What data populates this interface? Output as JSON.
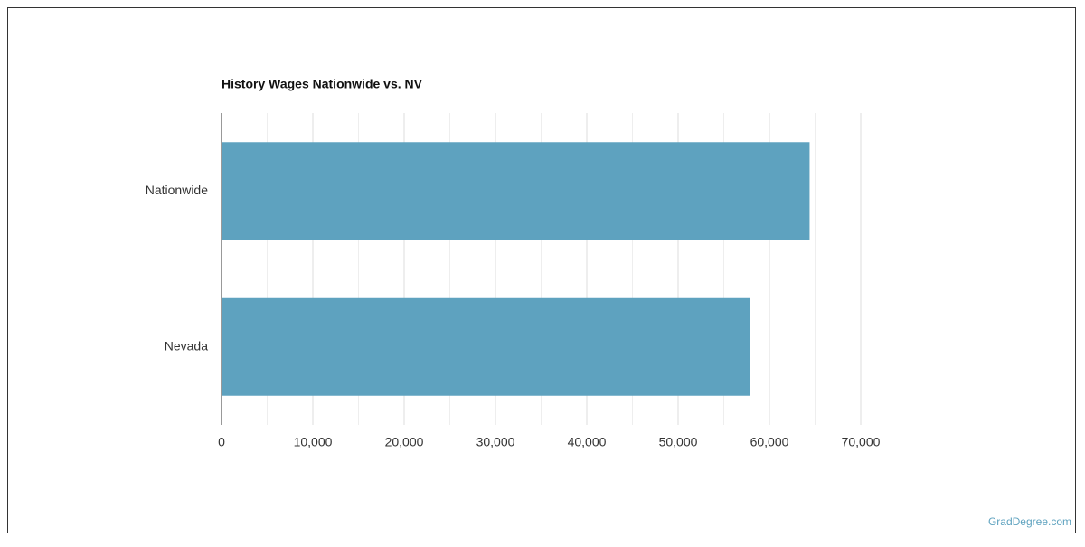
{
  "chart_data": {
    "type": "barh",
    "title": "History Wages Nationwide vs. NV",
    "categories": [
      "Nationwide",
      "Nevada"
    ],
    "values": [
      64400,
      57900
    ],
    "color": "#5ea2bf",
    "xlim": [
      0,
      70000
    ],
    "xticks": [
      0,
      {
        "value": 10000,
        "label": "10,000"
      },
      {
        "value": 20000,
        "label": "20,000"
      },
      {
        "value": 30000,
        "label": "30,000"
      },
      {
        "value": 40000,
        "label": "40,000"
      },
      {
        "value": 50000,
        "label": "50,000"
      },
      {
        "value": 60000,
        "label": "60,000"
      },
      {
        "value": 70000,
        "label": "70,000"
      }
    ],
    "minor_gridlines": [
      5000,
      15000,
      25000,
      35000,
      45000,
      55000,
      65000
    ],
    "grid": true
  },
  "watermark": "GradDegree.com"
}
